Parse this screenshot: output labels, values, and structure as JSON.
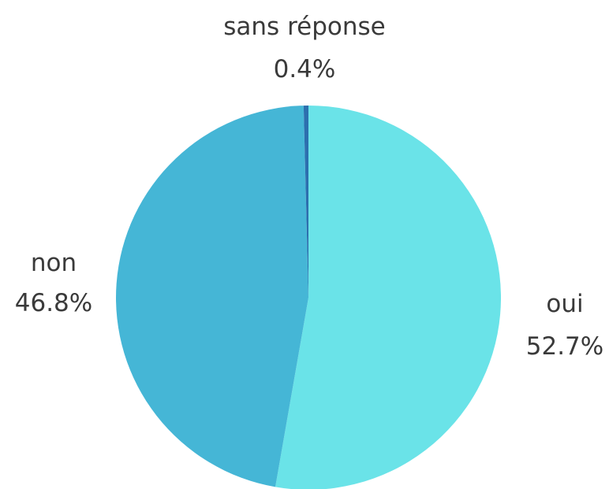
{
  "chart_data": {
    "type": "pie",
    "categories": [
      "oui",
      "non",
      "sans réponse"
    ],
    "values": [
      52.7,
      46.8,
      0.4
    ],
    "labels": {
      "oui": {
        "name": "oui",
        "value": "52.7%"
      },
      "non": {
        "name": "non",
        "value": "46.8%"
      },
      "sans_reponse": {
        "name": "sans réponse",
        "value": "0.4%"
      }
    },
    "colors": {
      "oui": "#6ae3e8",
      "non": "#45b6d6",
      "sans_reponse": "#2c6fae",
      "label_text": "#3a3a3a"
    },
    "start_angle_deg": 0,
    "direction": "clockwise"
  }
}
